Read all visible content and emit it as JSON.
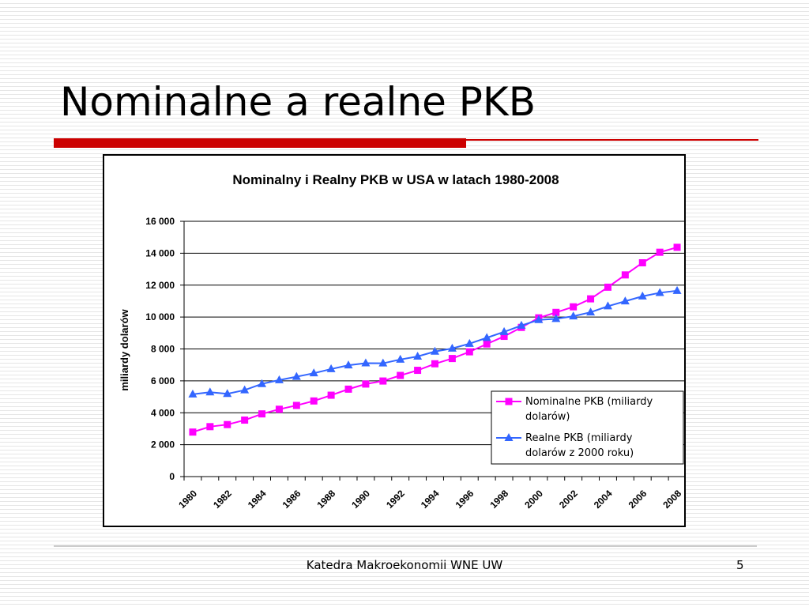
{
  "slide": {
    "title": "Nominalne a realne PKB",
    "footer": "Katedra Makroekonomii WNE UW",
    "page_number": "5"
  },
  "colors": {
    "title_bar": "#cc0000",
    "nominal": "#ff00ff",
    "real": "#3366ff"
  },
  "chart_data": {
    "type": "line",
    "title": "Nominalny i Realny PKB w USA w latach 1980-2008",
    "xlabel": "",
    "ylabel": "miliardy dolarów",
    "ylim": [
      0,
      16000
    ],
    "yticks": [
      "0",
      "2 000",
      "4 000",
      "6 000",
      "8 000",
      "10 000",
      "12 000",
      "14 000",
      "16 000"
    ],
    "ytick_values": [
      0,
      2000,
      4000,
      6000,
      8000,
      10000,
      12000,
      14000,
      16000
    ],
    "xtick_labels": [
      "1980",
      "1982",
      "1984",
      "1986",
      "1988",
      "1990",
      "1992",
      "1994",
      "1996",
      "1998",
      "2000",
      "2002",
      "2004",
      "2006",
      "2008"
    ],
    "x": [
      1980,
      1981,
      1982,
      1983,
      1984,
      1985,
      1986,
      1987,
      1988,
      1989,
      1990,
      1991,
      1992,
      1993,
      1994,
      1995,
      1996,
      1997,
      1998,
      1999,
      2000,
      2001,
      2002,
      2003,
      2004,
      2005,
      2006,
      2007,
      2008
    ],
    "grid": "horizontal",
    "legend_position": "bottom-right inside plot",
    "series": [
      {
        "name": "Nominalne PKB (miliardy dolarów)",
        "legend_lines": [
          "Nominalne PKB (miliardy",
          "dolarów)"
        ],
        "marker": "square",
        "color": "#ff00ff",
        "values": [
          2790,
          3130,
          3260,
          3540,
          3930,
          4220,
          4460,
          4740,
          5100,
          5480,
          5800,
          5990,
          6340,
          6660,
          7070,
          7400,
          7820,
          8310,
          8790,
          9350,
          9950,
          10290,
          10640,
          11140,
          11870,
          12640,
          13400,
          14060,
          14370
        ]
      },
      {
        "name": "Realne PKB (miliardy dolarów z 2000 roku)",
        "legend_lines": [
          "Realne PKB (miliardy",
          "dolarów z 2000 roku)"
        ],
        "marker": "triangle",
        "color": "#3366ff",
        "values": [
          5160,
          5290,
          5190,
          5420,
          5810,
          6050,
          6260,
          6480,
          6740,
          6980,
          7110,
          7100,
          7340,
          7530,
          7840,
          8030,
          8330,
          8700,
          9070,
          9470,
          9820,
          9890,
          10050,
          10300,
          10680,
          10990,
          11300,
          11520,
          11650
        ]
      }
    ]
  }
}
